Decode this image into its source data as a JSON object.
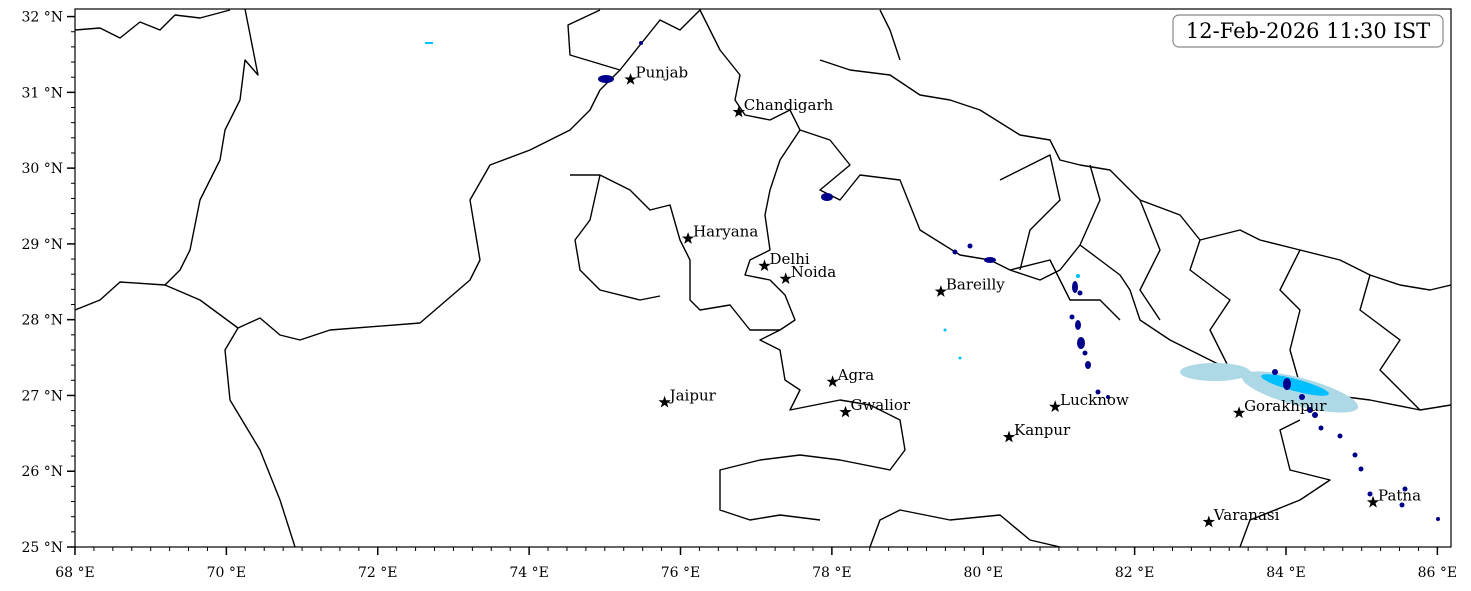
{
  "map": {
    "timestamp": "12-Feb-2026 11:30 IST",
    "extent": {
      "lon": [
        68,
        86.18
      ],
      "lat": [
        25,
        32.1
      ]
    },
    "x_ticks": [
      {
        "lon": 68,
        "label": "68 °E"
      },
      {
        "lon": 70,
        "label": "70 °E"
      },
      {
        "lon": 72,
        "label": "72 °E"
      },
      {
        "lon": 74,
        "label": "74 °E"
      },
      {
        "lon": 76,
        "label": "76 °E"
      },
      {
        "lon": 78,
        "label": "78 °E"
      },
      {
        "lon": 80,
        "label": "80 °E"
      },
      {
        "lon": 82,
        "label": "82 °E"
      },
      {
        "lon": 84,
        "label": "84 °E"
      },
      {
        "lon": 86,
        "label": "86 °E"
      }
    ],
    "y_ticks": [
      {
        "lat": 25,
        "label": "25 °N"
      },
      {
        "lat": 26,
        "label": "26 °N"
      },
      {
        "lat": 27,
        "label": "27 °N"
      },
      {
        "lat": 28,
        "label": "28 °N"
      },
      {
        "lat": 29,
        "label": "29 °N"
      },
      {
        "lat": 30,
        "label": "30 °N"
      },
      {
        "lat": 31,
        "label": "31 °N"
      },
      {
        "lat": 32,
        "label": "32 °N"
      }
    ],
    "cities": [
      {
        "name": "Punjab",
        "lon": 75.34,
        "lat": 31.17
      },
      {
        "name": "Chandigarh",
        "lon": 76.77,
        "lat": 30.74
      },
      {
        "name": "Haryana",
        "lon": 76.1,
        "lat": 29.07
      },
      {
        "name": "Delhi",
        "lon": 77.11,
        "lat": 28.71
      },
      {
        "name": "Noida",
        "lon": 77.39,
        "lat": 28.54
      },
      {
        "name": "Bareilly",
        "lon": 79.44,
        "lat": 28.37
      },
      {
        "name": "Jaipur",
        "lon": 75.79,
        "lat": 26.91
      },
      {
        "name": "Agra",
        "lon": 78.01,
        "lat": 27.18
      },
      {
        "name": "Gwalior",
        "lon": 78.18,
        "lat": 26.78
      },
      {
        "name": "Lucknow",
        "lon": 80.95,
        "lat": 26.85
      },
      {
        "name": "Kanpur",
        "lon": 80.34,
        "lat": 26.45
      },
      {
        "name": "Gorakhpur",
        "lon": 83.38,
        "lat": 26.77
      },
      {
        "name": "Varanasi",
        "lon": 82.98,
        "lat": 25.33
      },
      {
        "name": "Patna",
        "lon": 85.15,
        "lat": 25.59
      }
    ],
    "colors": {
      "light_rain": "#add8e6",
      "moderate_rain": "#00bfff",
      "heavy_rain": "#00008b",
      "boundary": "#000000",
      "city_marker": "#000000"
    }
  }
}
